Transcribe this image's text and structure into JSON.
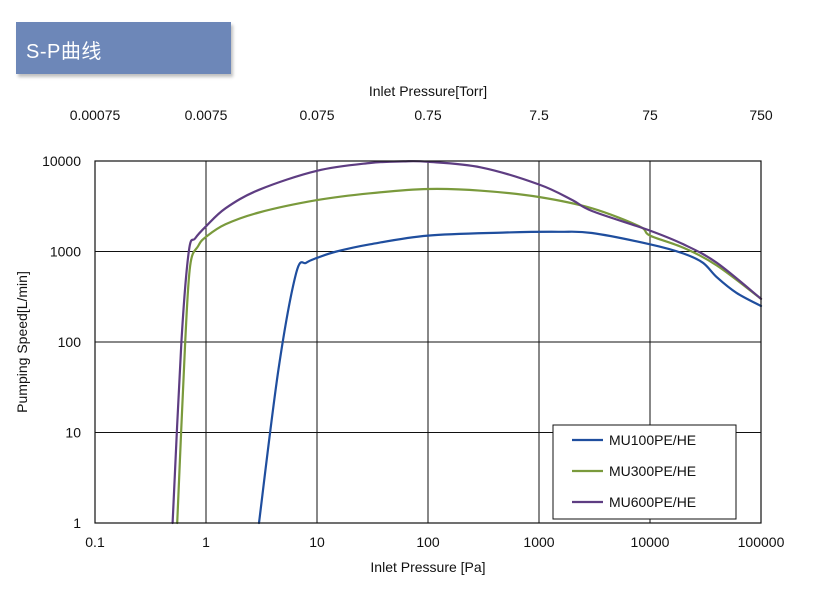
{
  "header": {
    "title": "S-P曲线"
  },
  "chart_data": {
    "type": "line",
    "x_scale": "log",
    "y_scale": "log",
    "xlim": [
      0.1,
      100000
    ],
    "ylim": [
      1,
      10000
    ],
    "xlabel": "Inlet Pressure [Pa]",
    "ylabel": "Pumping Speed[L/min]",
    "x2label": "Inlet Pressure[Torr]",
    "x_ticks": [
      "0.1",
      "1",
      "10",
      "100",
      "1000",
      "10000",
      "100000"
    ],
    "x2_ticks": [
      "0.00075",
      "0.0075",
      "0.075",
      "0.75",
      "7.5",
      "75",
      "750"
    ],
    "y_ticks": [
      "1",
      "10",
      "100",
      "1000",
      "10000"
    ],
    "grid": true,
    "legend_position": "bottom-right",
    "series": [
      {
        "name": "MU100PE/HE",
        "color": "#1f4e9e",
        "x": [
          3,
          4.5,
          6.5,
          8,
          10,
          15,
          30,
          100,
          500,
          1500,
          3000,
          10000,
          20000,
          30000,
          40000,
          60000,
          100000
        ],
        "y": [
          1,
          50,
          580,
          750,
          850,
          1000,
          1200,
          1500,
          1620,
          1650,
          1600,
          1200,
          950,
          750,
          520,
          350,
          250
        ]
      },
      {
        "name": "MU300PE/HE",
        "color": "#7a9a3c",
        "x": [
          0.55,
          0.65,
          0.72,
          0.85,
          1,
          1.5,
          3,
          10,
          30,
          100,
          300,
          1000,
          3000,
          8000,
          10000,
          20000,
          40000,
          100000
        ],
        "y": [
          1,
          100,
          700,
          1150,
          1450,
          2000,
          2700,
          3700,
          4400,
          4900,
          4700,
          4000,
          3000,
          1900,
          1500,
          1100,
          700,
          300
        ]
      },
      {
        "name": "MU600PE/HE",
        "color": "#5e3d82",
        "x": [
          0.5,
          0.6,
          0.7,
          0.8,
          1,
          1.5,
          3,
          10,
          30,
          60,
          100,
          300,
          1000,
          2000,
          3000,
          10000,
          20000,
          40000,
          100000
        ],
        "y": [
          1,
          100,
          1000,
          1400,
          1900,
          3000,
          4800,
          7800,
          9500,
          9900,
          9800,
          8500,
          5500,
          3700,
          2800,
          1700,
          1200,
          750,
          300
        ]
      }
    ]
  }
}
